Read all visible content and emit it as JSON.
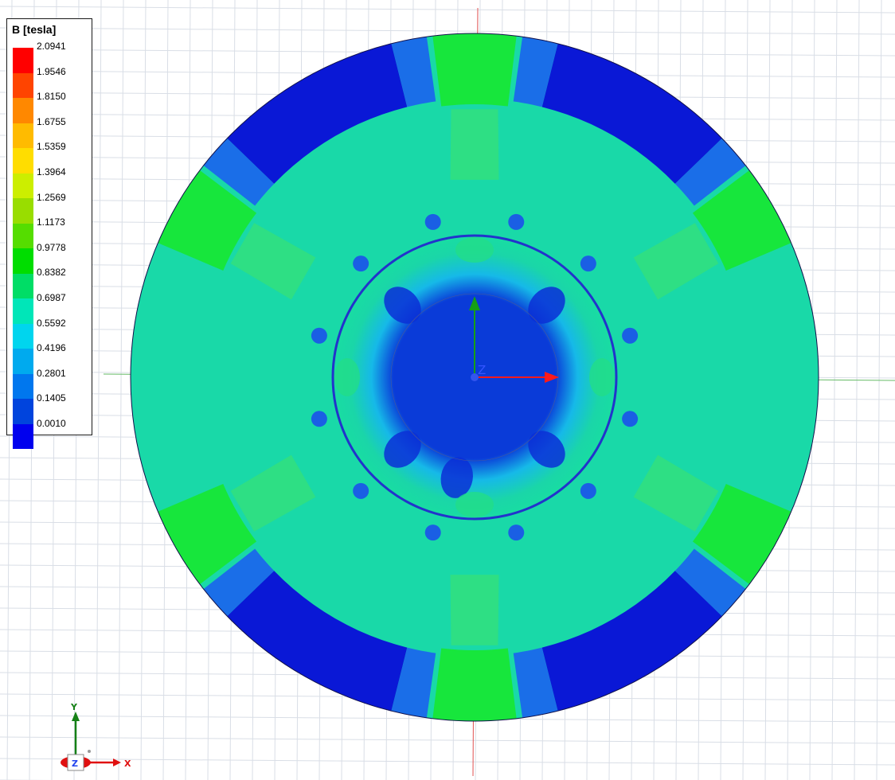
{
  "legend": {
    "title": "B [tesla]",
    "values": [
      "2.0941",
      "1.9546",
      "1.8150",
      "1.6755",
      "1.5359",
      "1.3964",
      "1.2569",
      "1.1173",
      "0.9778",
      "0.8382",
      "0.6987",
      "0.5592",
      "0.4196",
      "0.2801",
      "0.1405",
      "0.0010"
    ],
    "colors": [
      "#ff0000",
      "#ff4400",
      "#ff8800",
      "#ffbb00",
      "#ffdd00",
      "#ccee00",
      "#99dd00",
      "#55dd00",
      "#00dd00",
      "#00dd66",
      "#00e6b8",
      "#00d5ee",
      "#00aaee",
      "#0077ee",
      "#0044dd",
      "#0000ee"
    ]
  },
  "colors": {
    "field_low": "#0a18d6",
    "field_mid": "#19d9a0",
    "field_high": "#17e63c",
    "ring_outline": "#2233cc",
    "axis_x": "#ff2020",
    "axis_y": "#18a018",
    "axis_z": "#3355ff"
  },
  "axes": {
    "origin_label": "Z",
    "triad_x": "X",
    "triad_y": "Y",
    "triad_z": "Z"
  }
}
